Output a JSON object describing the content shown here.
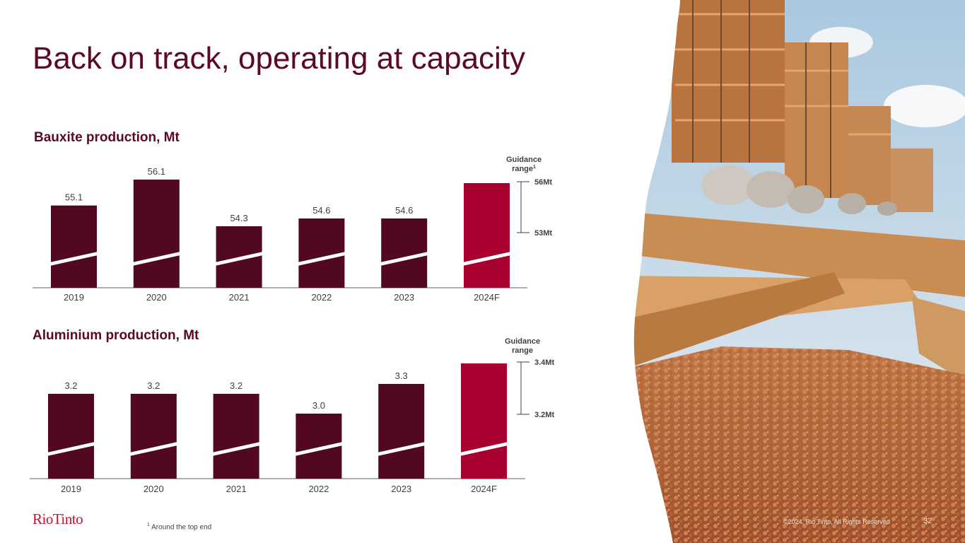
{
  "slide": {
    "title": "Back on track, operating at capacity",
    "logo": "RioTinto",
    "footnote_marker": "1",
    "footnote": "Around the top end",
    "copyright": "©2024, Rio Tinto, All Rights Reserved",
    "page_number": "32"
  },
  "colors": {
    "title": "#5a0a26",
    "bar_actual": "#52081f",
    "bar_forecast": "#a8002f",
    "text": "#404040"
  },
  "chart_data": [
    {
      "type": "bar",
      "title": "Bauxite production, Mt",
      "categories": [
        "2019",
        "2020",
        "2021",
        "2022",
        "2023",
        "2024F"
      ],
      "values": [
        55.1,
        56.1,
        54.3,
        54.6,
        54.6,
        null
      ],
      "value_labels": [
        "55.1",
        "56.1",
        "54.3",
        "54.6",
        "54.6",
        ""
      ],
      "axis_break": true,
      "guidance": {
        "label": "Guidance",
        "label_line2": "range",
        "footnote_marker": "1",
        "low": 53,
        "high": 56,
        "low_label": "53Mt",
        "high_label": "56Mt",
        "forecast_bar_value": 56
      }
    },
    {
      "type": "bar",
      "title": "Aluminium production, Mt",
      "categories": [
        "2019",
        "2020",
        "2021",
        "2022",
        "2023",
        "2024F"
      ],
      "values": [
        3.2,
        3.2,
        3.2,
        3.0,
        3.3,
        null
      ],
      "value_labels": [
        "3.2",
        "3.2",
        "3.2",
        "3.0",
        "3.3",
        ""
      ],
      "axis_break": true,
      "guidance": {
        "label": "Guidance",
        "label_line2": "range",
        "footnote_marker": "",
        "low": 3.2,
        "high": 3.4,
        "low_label": "3.2Mt",
        "high_label": "3.4Mt",
        "forecast_bar_value": 3.4
      }
    }
  ]
}
